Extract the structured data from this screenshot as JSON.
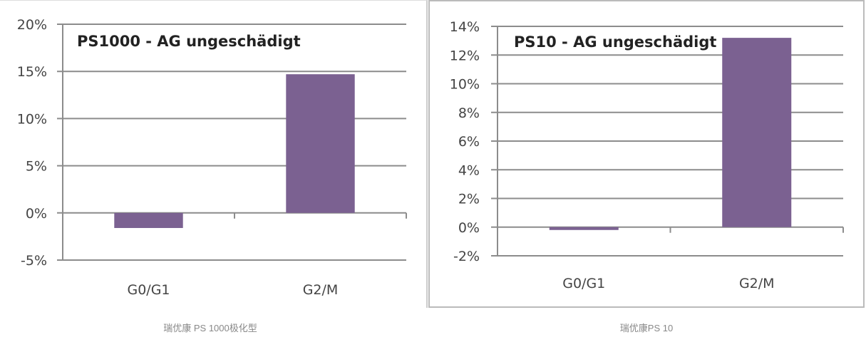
{
  "chart_data": [
    {
      "type": "bar",
      "title": "PS1000 - AG ungeschädigt",
      "categories": [
        "G0/G1",
        "G2/M"
      ],
      "values": [
        -1.6,
        14.7
      ],
      "ylim": [
        -5,
        20
      ],
      "yticks": [
        -5,
        0,
        5,
        10,
        15,
        20
      ],
      "ytick_labels": [
        "-5%",
        "0%",
        "5%",
        "10%",
        "15%",
        "20%"
      ],
      "xlabel": "",
      "ylabel": "",
      "grid": true,
      "color": "#7b6191",
      "caption": "瑞优康 PS 1000极化型"
    },
    {
      "type": "bar",
      "title": "PS10 - AG ungeschädigt",
      "categories": [
        "G0/G1",
        "G2/M"
      ],
      "values": [
        -0.2,
        13.2
      ],
      "ylim": [
        -2,
        14
      ],
      "yticks": [
        -2,
        0,
        2,
        4,
        6,
        8,
        10,
        12,
        14
      ],
      "ytick_labels": [
        "-2%",
        "0%",
        "2%",
        "4%",
        "6%",
        "8%",
        "10%",
        "12%",
        "14%"
      ],
      "xlabel": "",
      "ylabel": "",
      "grid": true,
      "color": "#7b6191",
      "caption": "瑞优康PS 10"
    }
  ]
}
